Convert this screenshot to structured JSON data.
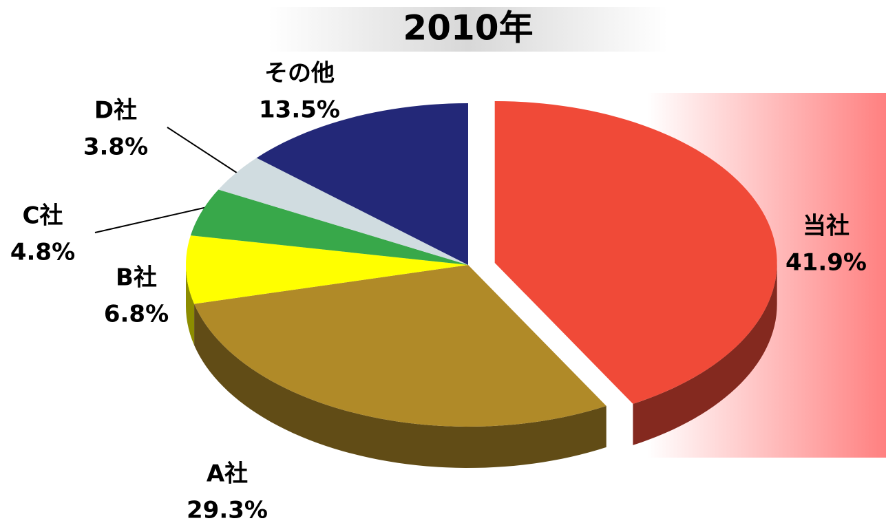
{
  "chart_data": {
    "type": "pie",
    "title": "2010年",
    "categories": [
      "当社",
      "A社",
      "B社",
      "C社",
      "D社",
      "その他"
    ],
    "values": [
      41.9,
      29.3,
      6.8,
      4.8,
      3.8,
      13.5
    ],
    "value_labels": [
      "41.9%",
      "29.3%",
      "6.8%",
      "4.8%",
      "3.8%",
      "13.5%"
    ],
    "colors": [
      "#f04a38",
      "#b08a28",
      "#ffff00",
      "#38a84a",
      "#d0dce0",
      "#232878"
    ]
  }
}
